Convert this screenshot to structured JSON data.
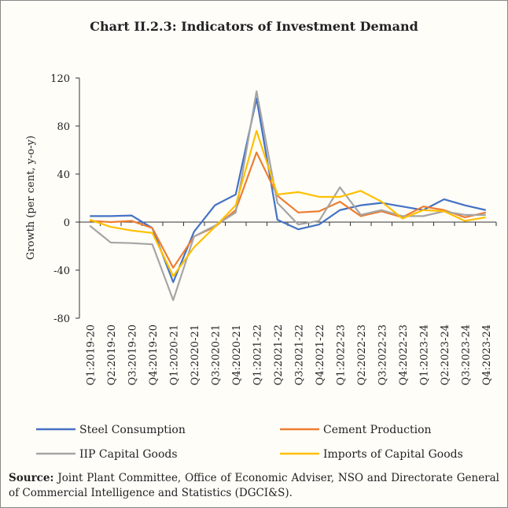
{
  "chart_data": {
    "type": "line",
    "title": "Chart II.2.3: Indicators of Investment Demand",
    "y_label": "Growth (per cent, y-o-y)",
    "categories": [
      "Q1:2019-20",
      "Q2:2019-20",
      "Q3:2019-20",
      "Q4:2019-20",
      "Q1:2020-21",
      "Q2:2020-21",
      "Q3:2020-21",
      "Q4:2020-21",
      "Q1:2021-22",
      "Q2:2021-22",
      "Q3:2021-22",
      "Q4:2021-22",
      "Q1:2022-23",
      "Q2:2022-23",
      "Q3:2022-23",
      "Q4:2022-23",
      "Q1:2023-24",
      "Q2:2023-24",
      "Q3:2023-24",
      "Q4:2023-24"
    ],
    "series": [
      {
        "name": "Steel Consumption",
        "color": "#4472c4",
        "values": [
          5,
          5,
          5.5,
          -5,
          -50,
          -8,
          14,
          23,
          103,
          2,
          -6,
          -2,
          10,
          14,
          16,
          13,
          10,
          19,
          14,
          10
        ]
      },
      {
        "name": "Cement Production",
        "color": "#ed7d31",
        "values": [
          1,
          0,
          1,
          -5,
          -38,
          -12,
          -4,
          10,
          58,
          22,
          8,
          9,
          17,
          5,
          9,
          4,
          13,
          10,
          4,
          8
        ]
      },
      {
        "name": "IIP Capital Goods",
        "color": "#a5a5a5",
        "values": [
          -3,
          -17,
          -17.5,
          -18.5,
          -65,
          -12,
          -3,
          8,
          109,
          16,
          -2,
          1,
          29,
          6,
          10,
          5,
          5,
          9,
          6,
          6
        ]
      },
      {
        "name": "Imports of Capital Goods",
        "color": "#ffc000",
        "values": [
          2,
          -4,
          -7,
          -9,
          -45,
          -21,
          -4,
          14,
          76,
          23,
          25,
          21,
          21,
          26,
          17,
          3,
          10,
          9,
          1,
          4
        ]
      }
    ],
    "ylim": [
      -80,
      120
    ],
    "yticks": [
      120,
      80,
      40,
      0,
      -40,
      -80
    ],
    "source_label": "Source:",
    "source": "Joint Plant Committee, Office of Economic Adviser, NSO and Directorate General of Commercial Intelligence and Statistics (DGCI&S)."
  }
}
